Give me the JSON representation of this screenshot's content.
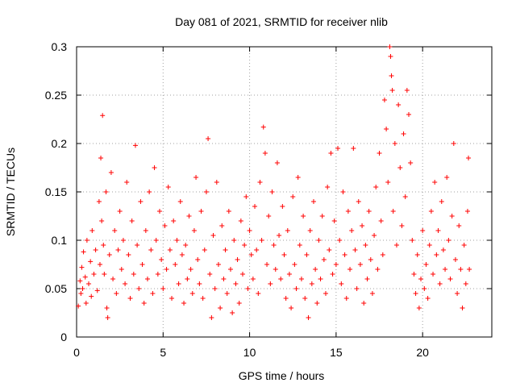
{
  "chart_data": {
    "type": "scatter",
    "title": "Day 081 of 2021, SRMTID for receiver nlib",
    "xlabel": "GPS time / hours",
    "ylabel": "SRMTID / TECUs",
    "xlim": [
      0,
      24
    ],
    "ylim": [
      0,
      0.3
    ],
    "xticks": [
      0,
      5,
      10,
      15,
      20
    ],
    "xtick_labels": [
      "0",
      "5",
      "10",
      "15",
      "20"
    ],
    "yticks": [
      0,
      0.05,
      0.1,
      0.15,
      0.2,
      0.25,
      0.3
    ],
    "ytick_labels": [
      "0",
      "0.05",
      "0.1",
      "0.15",
      "0.2",
      "0.25",
      "0.3"
    ],
    "grid": true,
    "marker": "+",
    "series": [
      {
        "name": "nlib",
        "color": "#ff0000",
        "points": [
          [
            0.1,
            0.032
          ],
          [
            0.2,
            0.058
          ],
          [
            0.25,
            0.045
          ],
          [
            0.3,
            0.072
          ],
          [
            0.35,
            0.05
          ],
          [
            0.4,
            0.088
          ],
          [
            0.5,
            0.062
          ],
          [
            0.55,
            0.035
          ],
          [
            0.6,
            0.1
          ],
          [
            0.7,
            0.055
          ],
          [
            0.8,
            0.078
          ],
          [
            0.85,
            0.042
          ],
          [
            0.9,
            0.11
          ],
          [
            1.0,
            0.065
          ],
          [
            1.1,
            0.09
          ],
          [
            1.2,
            0.048
          ],
          [
            1.3,
            0.14
          ],
          [
            1.35,
            0.075
          ],
          [
            1.4,
            0.185
          ],
          [
            1.45,
            0.12
          ],
          [
            1.5,
            0.229
          ],
          [
            1.55,
            0.095
          ],
          [
            1.6,
            0.065
          ],
          [
            1.7,
            0.15
          ],
          [
            1.75,
            0.03
          ],
          [
            1.8,
            0.02
          ],
          [
            1.9,
            0.085
          ],
          [
            2.0,
            0.17
          ],
          [
            2.1,
            0.06
          ],
          [
            2.2,
            0.11
          ],
          [
            2.3,
            0.045
          ],
          [
            2.4,
            0.09
          ],
          [
            2.5,
            0.13
          ],
          [
            2.6,
            0.07
          ],
          [
            2.7,
            0.1
          ],
          [
            2.8,
            0.055
          ],
          [
            2.9,
            0.16
          ],
          [
            3.0,
            0.085
          ],
          [
            3.1,
            0.04
          ],
          [
            3.2,
            0.12
          ],
          [
            3.3,
            0.065
          ],
          [
            3.4,
            0.198
          ],
          [
            3.5,
            0.095
          ],
          [
            3.6,
            0.05
          ],
          [
            3.7,
            0.14
          ],
          [
            3.8,
            0.075
          ],
          [
            3.9,
            0.035
          ],
          [
            4.0,
            0.11
          ],
          [
            4.1,
            0.06
          ],
          [
            4.2,
            0.15
          ],
          [
            4.3,
            0.09
          ],
          [
            4.4,
            0.045
          ],
          [
            4.5,
            0.175
          ],
          [
            4.6,
            0.1
          ],
          [
            4.7,
            0.065
          ],
          [
            4.8,
            0.13
          ],
          [
            4.9,
            0.08
          ],
          [
            5.0,
            0.05
          ],
          [
            5.1,
            0.115
          ],
          [
            5.2,
            0.07
          ],
          [
            5.3,
            0.155
          ],
          [
            5.4,
            0.09
          ],
          [
            5.5,
            0.04
          ],
          [
            5.6,
            0.12
          ],
          [
            5.7,
            0.075
          ],
          [
            5.8,
            0.1
          ],
          [
            5.9,
            0.055
          ],
          [
            6.0,
            0.14
          ],
          [
            6.1,
            0.085
          ],
          [
            6.2,
            0.035
          ],
          [
            6.3,
            0.095
          ],
          [
            6.4,
            0.06
          ],
          [
            6.5,
            0.125
          ],
          [
            6.6,
            0.07
          ],
          [
            6.7,
            0.045
          ],
          [
            6.8,
            0.11
          ],
          [
            6.9,
            0.165
          ],
          [
            7.0,
            0.08
          ],
          [
            7.1,
            0.055
          ],
          [
            7.2,
            0.13
          ],
          [
            7.3,
            0.04
          ],
          [
            7.4,
            0.09
          ],
          [
            7.5,
            0.15
          ],
          [
            7.6,
            0.205
          ],
          [
            7.7,
            0.065
          ],
          [
            7.8,
            0.02
          ],
          [
            7.9,
            0.105
          ],
          [
            8.0,
            0.05
          ],
          [
            8.1,
            0.16
          ],
          [
            8.2,
            0.075
          ],
          [
            8.3,
            0.03
          ],
          [
            8.4,
            0.115
          ],
          [
            8.5,
            0.06
          ],
          [
            8.6,
            0.09
          ],
          [
            8.7,
            0.045
          ],
          [
            8.8,
            0.13
          ],
          [
            8.9,
            0.07
          ],
          [
            9.0,
            0.025
          ],
          [
            9.1,
            0.1
          ],
          [
            9.2,
            0.055
          ],
          [
            9.3,
            0.08
          ],
          [
            9.4,
            0.035
          ],
          [
            9.5,
            0.12
          ],
          [
            9.6,
            0.065
          ],
          [
            9.7,
            0.095
          ],
          [
            9.8,
            0.145
          ],
          [
            9.9,
            0.05
          ],
          [
            10.0,
            0.11
          ],
          [
            10.1,
            0.085
          ],
          [
            10.2,
            0.06
          ],
          [
            10.3,
            0.135
          ],
          [
            10.4,
            0.09
          ],
          [
            10.5,
            0.045
          ],
          [
            10.6,
            0.16
          ],
          [
            10.7,
            0.1
          ],
          [
            10.8,
            0.217
          ],
          [
            10.9,
            0.19
          ],
          [
            11.0,
            0.075
          ],
          [
            11.1,
            0.125
          ],
          [
            11.2,
            0.055
          ],
          [
            11.3,
            0.15
          ],
          [
            11.4,
            0.095
          ],
          [
            11.5,
            0.07
          ],
          [
            11.6,
            0.18
          ],
          [
            11.7,
            0.105
          ],
          [
            11.8,
            0.06
          ],
          [
            11.9,
            0.135
          ],
          [
            12.0,
            0.085
          ],
          [
            12.1,
            0.04
          ],
          [
            12.2,
            0.11
          ],
          [
            12.3,
            0.065
          ],
          [
            12.4,
            0.03
          ],
          [
            12.5,
            0.145
          ],
          [
            12.6,
            0.075
          ],
          [
            12.7,
            0.05
          ],
          [
            12.8,
            0.165
          ],
          [
            12.9,
            0.095
          ],
          [
            13.0,
            0.06
          ],
          [
            13.1,
            0.125
          ],
          [
            13.2,
            0.04
          ],
          [
            13.3,
            0.085
          ],
          [
            13.4,
            0.02
          ],
          [
            13.5,
            0.11
          ],
          [
            13.6,
            0.055
          ],
          [
            13.7,
            0.14
          ],
          [
            13.8,
            0.07
          ],
          [
            13.9,
            0.035
          ],
          [
            14.0,
            0.1
          ],
          [
            14.1,
            0.06
          ],
          [
            14.2,
            0.125
          ],
          [
            14.3,
            0.08
          ],
          [
            14.4,
            0.045
          ],
          [
            14.5,
            0.155
          ],
          [
            14.6,
            0.09
          ],
          [
            14.7,
            0.19
          ],
          [
            14.8,
            0.065
          ],
          [
            14.9,
            0.12
          ],
          [
            15.0,
            0.075
          ],
          [
            15.1,
            0.195
          ],
          [
            15.2,
            0.1
          ],
          [
            15.3,
            0.055
          ],
          [
            15.4,
            0.15
          ],
          [
            15.5,
            0.085
          ],
          [
            15.6,
            0.04
          ],
          [
            15.7,
            0.13
          ],
          [
            15.8,
            0.07
          ],
          [
            15.9,
            0.11
          ],
          [
            16.0,
            0.195
          ],
          [
            16.1,
            0.09
          ],
          [
            16.2,
            0.05
          ],
          [
            16.3,
            0.14
          ],
          [
            16.4,
            0.075
          ],
          [
            16.5,
            0.115
          ],
          [
            16.6,
            0.035
          ],
          [
            16.7,
            0.095
          ],
          [
            16.8,
            0.06
          ],
          [
            16.9,
            0.13
          ],
          [
            17.0,
            0.08
          ],
          [
            17.1,
            0.045
          ],
          [
            17.2,
            0.105
          ],
          [
            17.3,
            0.155
          ],
          [
            17.4,
            0.07
          ],
          [
            17.5,
            0.19
          ],
          [
            17.6,
            0.12
          ],
          [
            17.7,
            0.085
          ],
          [
            17.8,
            0.245
          ],
          [
            17.9,
            0.215
          ],
          [
            18.0,
            0.16
          ],
          [
            18.1,
            0.3
          ],
          [
            18.15,
            0.29
          ],
          [
            18.2,
            0.27
          ],
          [
            18.25,
            0.255
          ],
          [
            18.3,
            0.13
          ],
          [
            18.4,
            0.2
          ],
          [
            18.5,
            0.095
          ],
          [
            18.6,
            0.24
          ],
          [
            18.7,
            0.175
          ],
          [
            18.8,
            0.115
          ],
          [
            18.9,
            0.21
          ],
          [
            19.0,
            0.145
          ],
          [
            19.1,
            0.255
          ],
          [
            19.2,
            0.23
          ],
          [
            19.3,
            0.18
          ],
          [
            19.4,
            0.1
          ],
          [
            19.5,
            0.065
          ],
          [
            19.6,
            0.045
          ],
          [
            19.7,
            0.085
          ],
          [
            19.8,
            0.03
          ],
          [
            19.9,
            0.06
          ],
          [
            20.0,
            0.11
          ],
          [
            20.1,
            0.05
          ],
          [
            20.2,
            0.075
          ],
          [
            20.3,
            0.04
          ],
          [
            20.4,
            0.095
          ],
          [
            20.5,
            0.13
          ],
          [
            20.6,
            0.065
          ],
          [
            20.7,
            0.16
          ],
          [
            20.8,
            0.085
          ],
          [
            20.9,
            0.11
          ],
          [
            21.0,
            0.055
          ],
          [
            21.1,
            0.14
          ],
          [
            21.2,
            0.09
          ],
          [
            21.3,
            0.07
          ],
          [
            21.4,
            0.165
          ],
          [
            21.5,
            0.1
          ],
          [
            21.6,
            0.06
          ],
          [
            21.7,
            0.125
          ],
          [
            21.8,
            0.2
          ],
          [
            21.9,
            0.08
          ],
          [
            22.0,
            0.045
          ],
          [
            22.1,
            0.115
          ],
          [
            22.2,
            0.07
          ],
          [
            22.3,
            0.03
          ],
          [
            22.4,
            0.095
          ],
          [
            22.5,
            0.055
          ],
          [
            22.6,
            0.13
          ],
          [
            22.65,
            0.185
          ],
          [
            22.7,
            0.07
          ]
        ]
      }
    ]
  }
}
